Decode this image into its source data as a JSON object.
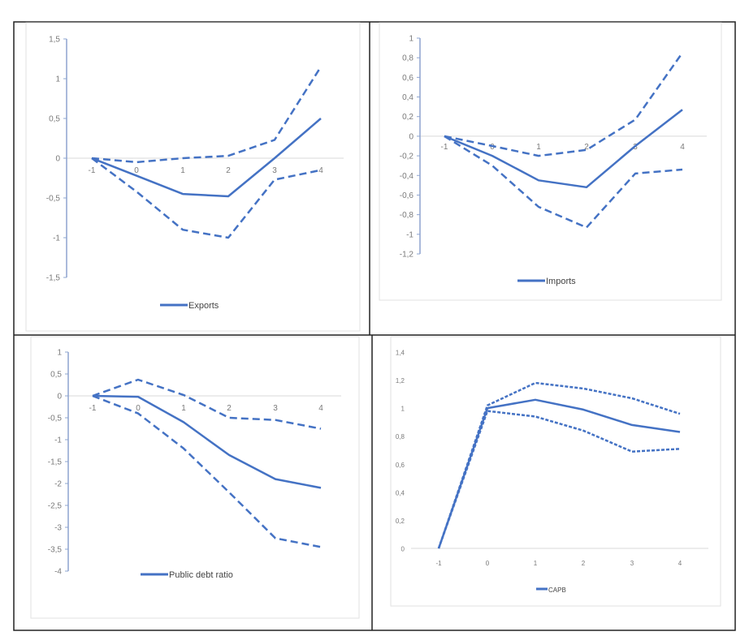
{
  "series_color": "#4472C4",
  "chart_data": [
    {
      "type": "line",
      "legend": "Exports",
      "x": [
        -1,
        0,
        1,
        2,
        3,
        4
      ],
      "x_tick_labels": [
        "-1",
        "0",
        "1",
        "2",
        "3",
        "4"
      ],
      "y_tick_labels": [
        "1,5",
        "1",
        "0,5",
        "0",
        "-0,5",
        "-1",
        "-1,5"
      ],
      "ylim": [
        -1.5,
        1.5
      ],
      "ystep": 0.5,
      "series": [
        {
          "name": "Exports",
          "style": "solid",
          "values": [
            0,
            -0.22,
            -0.45,
            -0.48,
            0,
            0.5
          ]
        },
        {
          "name": "upper bound",
          "style": "dashed",
          "values": [
            0,
            -0.05,
            0,
            0.03,
            0.23,
            1.15
          ]
        },
        {
          "name": "lower bound",
          "style": "dashed",
          "values": [
            0,
            -0.42,
            -0.9,
            -1.0,
            -0.27,
            -0.15
          ]
        }
      ]
    },
    {
      "type": "line",
      "legend": "Imports",
      "x": [
        -1,
        0,
        1,
        2,
        3,
        4
      ],
      "x_tick_labels": [
        "-1",
        "0",
        "1",
        "2",
        "3",
        "4"
      ],
      "y_tick_labels": [
        "1",
        "0,8",
        "0,6",
        "0,4",
        "0,2",
        "0",
        "-0,2",
        "-0,4",
        "-0,6",
        "-0,8",
        "-1",
        "-1,2"
      ],
      "ylim": [
        -1.2,
        1
      ],
      "ystep": 0.2,
      "series": [
        {
          "name": "Imports",
          "style": "solid",
          "values": [
            0,
            -0.2,
            -0.45,
            -0.52,
            -0.1,
            0.27
          ]
        },
        {
          "name": "upper bound",
          "style": "dashed",
          "values": [
            0,
            -0.1,
            -0.2,
            -0.14,
            0.17,
            0.85
          ]
        },
        {
          "name": "lower bound",
          "style": "dashed",
          "values": [
            0,
            -0.3,
            -0.72,
            -0.93,
            -0.38,
            -0.34
          ]
        }
      ]
    },
    {
      "type": "line",
      "legend": "Public debt ratio",
      "x": [
        -1,
        0,
        1,
        2,
        3,
        4
      ],
      "x_tick_labels": [
        "-1",
        "0",
        "1",
        "2",
        "3",
        "4"
      ],
      "y_tick_labels": [
        "1",
        "0,5",
        "0",
        "-0,5",
        "-1",
        "-1,5",
        "-2",
        "-2,5",
        "-3",
        "-3,5",
        "-4"
      ],
      "ylim": [
        -4,
        1
      ],
      "ystep": 0.5,
      "series": [
        {
          "name": "Public debt ratio",
          "style": "solid",
          "values": [
            0,
            -0.02,
            -0.6,
            -1.35,
            -1.9,
            -2.1
          ]
        },
        {
          "name": "upper bound",
          "style": "dashed",
          "values": [
            0,
            0.37,
            0.02,
            -0.5,
            -0.55,
            -0.75
          ]
        },
        {
          "name": "lower bound",
          "style": "dashed",
          "values": [
            0,
            -0.4,
            -1.2,
            -2.2,
            -3.25,
            -3.45
          ]
        }
      ]
    },
    {
      "type": "line",
      "legend": "CAPB",
      "x": [
        -1,
        0,
        1,
        2,
        3,
        4
      ],
      "x_tick_labels": [
        "-1",
        "0",
        "1",
        "2",
        "3",
        "4"
      ],
      "y_tick_labels": [
        "1,4",
        "1,2",
        "1",
        "0,8",
        "0,6",
        "0,4",
        "0,2",
        "0"
      ],
      "ylim": [
        0,
        1.4
      ],
      "ystep": 0.2,
      "series": [
        {
          "name": "CAPB",
          "style": "solid",
          "values": [
            0,
            1.0,
            1.06,
            0.99,
            0.88,
            0.83
          ]
        },
        {
          "name": "upper bound",
          "style": "dotted",
          "values": [
            0,
            1.02,
            1.18,
            1.14,
            1.07,
            0.96
          ]
        },
        {
          "name": "lower bound",
          "style": "dotted",
          "values": [
            0,
            0.98,
            0.94,
            0.84,
            0.69,
            0.71
          ]
        }
      ]
    }
  ]
}
